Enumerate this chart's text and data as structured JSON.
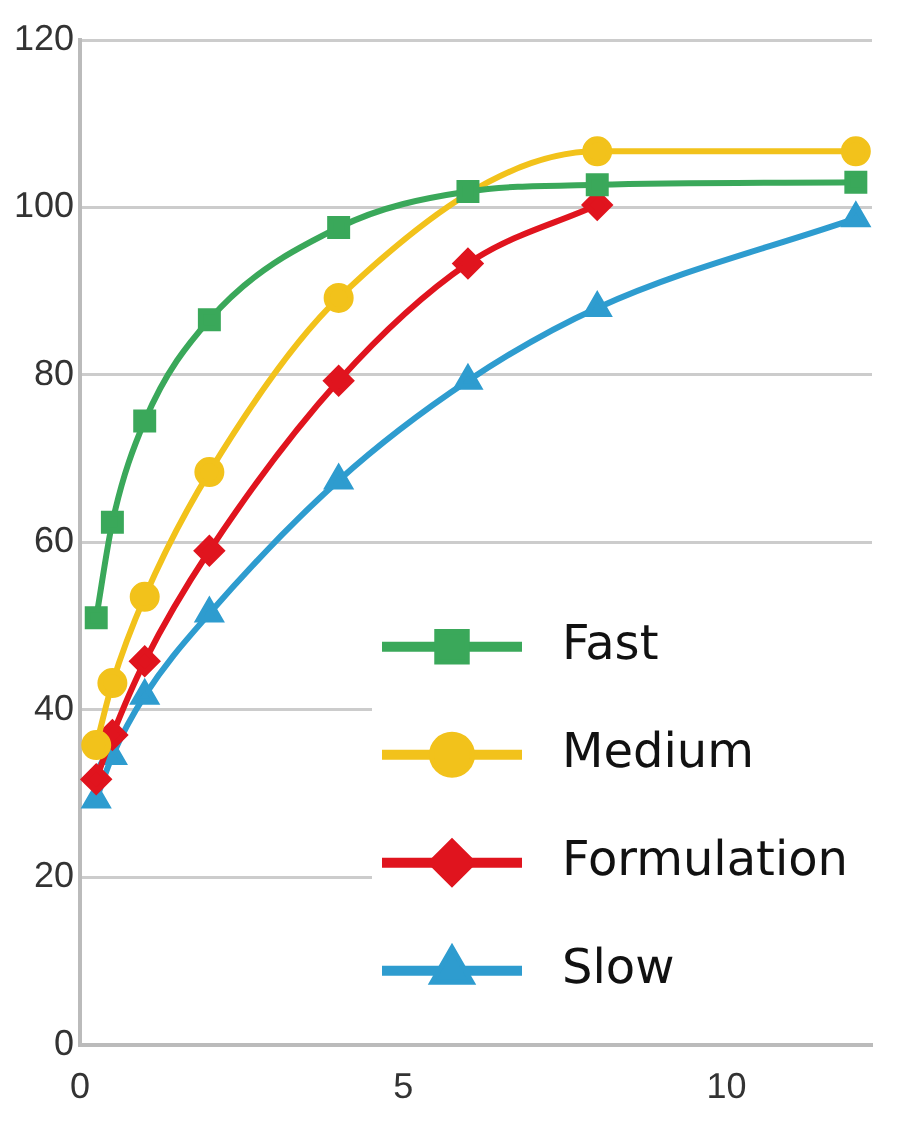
{
  "chart_data": {
    "type": "line",
    "x": [
      0.25,
      0.5,
      1,
      2,
      4,
      6,
      8,
      12
    ],
    "xlim": [
      0,
      12.25
    ],
    "xticks": [
      0,
      5,
      10
    ],
    "ylim": [
      0,
      120
    ],
    "yticks": [
      0,
      20,
      40,
      60,
      80,
      100,
      120
    ],
    "grid": "y",
    "legend": "bottom right",
    "line_style": "solid",
    "series": [
      {
        "name": "Fast",
        "color": "#3aa85a",
        "marker": "square",
        "values": [
          51,
          62.4,
          74.5,
          86.6,
          97.6,
          101.9,
          102.7,
          103
        ]
      },
      {
        "name": "Medium",
        "color": "#f2c21b",
        "marker": "circle",
        "values": [
          35.8,
          43.2,
          53.5,
          68.4,
          89.2,
          null,
          106.7,
          106.7
        ]
      },
      {
        "name": "Formulation",
        "color": "#e0141e",
        "marker": "diamond",
        "values": [
          31.7,
          37,
          45.8,
          59,
          79.3,
          93.3,
          100.3,
          null
        ]
      },
      {
        "name": "Slow",
        "color": "#2e9ccf",
        "marker": "triangle",
        "values": [
          29.3,
          34.5,
          41.7,
          51.5,
          67.4,
          79.3,
          88,
          98.7
        ]
      }
    ]
  }
}
